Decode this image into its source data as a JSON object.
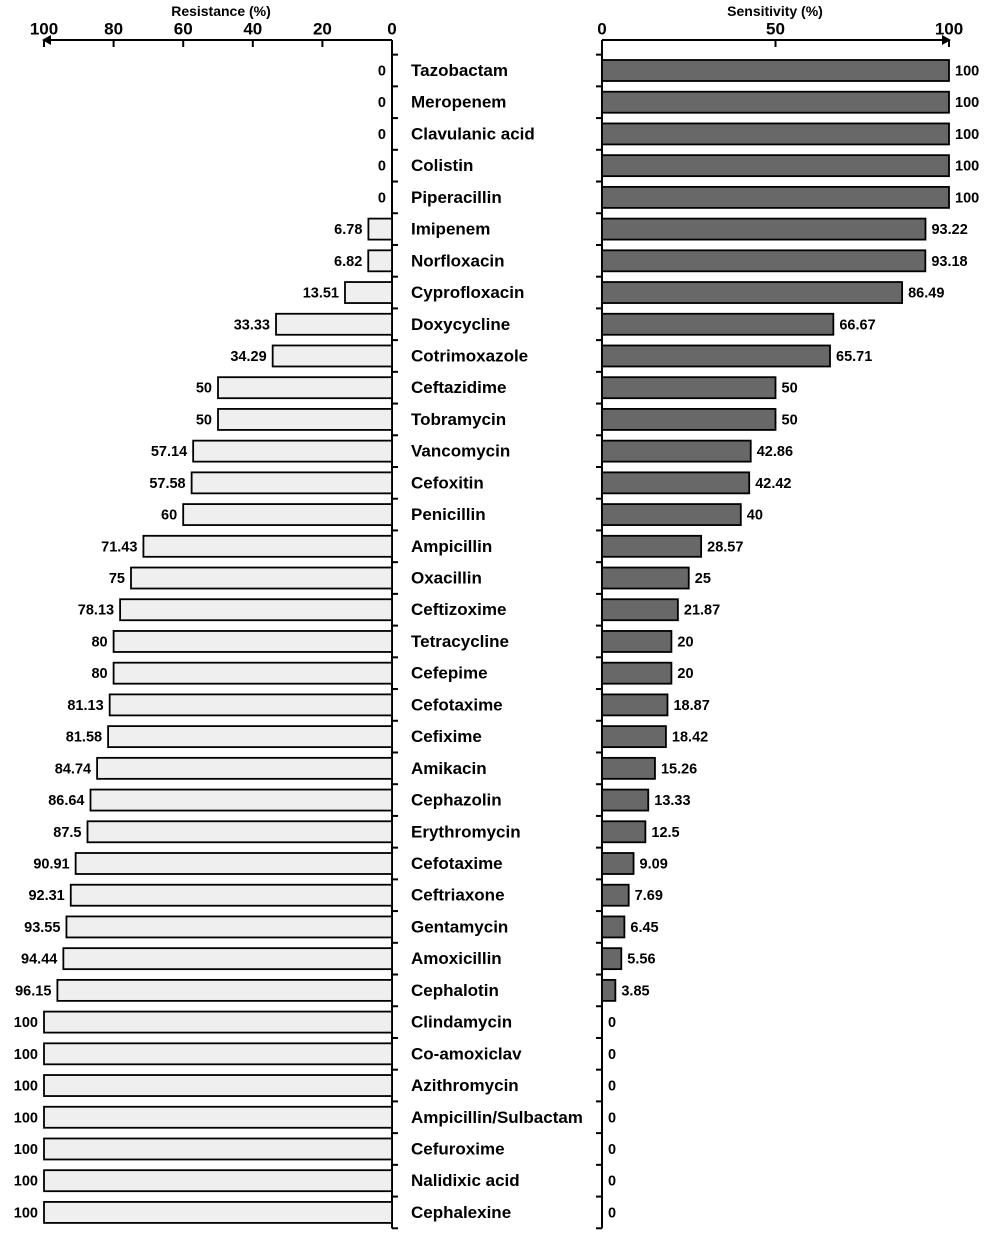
{
  "chart_data": {
    "type": "bar",
    "categories": [
      "Tazobactam",
      "Meropenem",
      "Clavulanic acid",
      "Colistin",
      "Piperacillin",
      "Imipenem",
      "Norfloxacin",
      "Cyprofloxacin",
      "Doxycycline",
      "Cotrimoxazole",
      "Ceftazidime",
      "Tobramycin",
      "Vancomycin",
      "Cefoxitin",
      "Penicillin",
      "Ampicillin",
      "Oxacillin",
      "Ceftizoxime",
      "Tetracycline",
      "Cefepime",
      "Cefotaxime",
      "Cefixime",
      "Amikacin",
      "Cephazolin",
      "Erythromycin",
      "Cefotaxime",
      "Ceftriaxone",
      "Gentamycin",
      "Amoxicillin",
      "Cephalotin",
      "Clindamycin",
      "Co-amoxiclav",
      "Azithromycin",
      "Ampicillin/Sulbactam",
      "Cefuroxime",
      "Nalidixic acid",
      "Cephalexine"
    ],
    "series": [
      {
        "name": "Resistance (%)",
        "color": "#efefef",
        "values": [
          0,
          0,
          0,
          0,
          0,
          6.78,
          6.82,
          13.51,
          33.33,
          34.29,
          50,
          50,
          57.14,
          57.58,
          60,
          71.43,
          75,
          78.13,
          80,
          80,
          81.13,
          81.58,
          84.74,
          86.64,
          87.5,
          90.91,
          92.31,
          93.55,
          94.44,
          96.15,
          100,
          100,
          100,
          100,
          100,
          100,
          100
        ],
        "labels": [
          "0",
          "0",
          "0",
          "0",
          "0",
          "6.78",
          "6.82",
          "13.51",
          "33.33",
          "34.29",
          "50",
          "50",
          "57.14",
          "57.58",
          "60",
          "71.43",
          "75",
          "78.13",
          "80",
          "80",
          "81.13",
          "81.58",
          "84.74",
          "86.64",
          "87.5",
          "90.91",
          "92.31",
          "93.55",
          "94.44",
          "96.15",
          "100",
          "100",
          "100",
          "100",
          "100",
          "100",
          "100"
        ]
      },
      {
        "name": "Sensitivity (%)",
        "color": "#686868",
        "values": [
          100,
          100,
          100,
          100,
          100,
          93.22,
          93.18,
          86.49,
          66.67,
          65.71,
          50,
          50,
          42.86,
          42.42,
          40,
          28.57,
          25,
          21.87,
          20,
          20,
          18.87,
          18.42,
          15.26,
          13.33,
          12.5,
          9.09,
          7.69,
          6.45,
          5.56,
          3.85,
          0,
          0,
          0,
          0,
          0,
          0,
          0
        ],
        "labels": [
          "100",
          "100",
          "100",
          "100",
          "100",
          "93.22",
          "93.18",
          "86.49",
          "66.67",
          "65.71",
          "50",
          "50",
          "42.86",
          "42.42",
          "40",
          "28.57",
          "25",
          "21.87",
          "20",
          "20",
          "18.87",
          "18.42",
          "15.26",
          "13.33",
          "12.5",
          "9.09",
          "7.69",
          "6.45",
          "5.56",
          "3.85",
          "0",
          "0",
          "0",
          "0",
          "0",
          "0",
          "0"
        ]
      }
    ],
    "resistance_axis": {
      "title": "Resistance (%)",
      "range": [
        0,
        100
      ],
      "ticks": [
        "100",
        "80",
        "60",
        "40",
        "20",
        "0"
      ],
      "direction": "right-to-left"
    },
    "sensitivity_axis": {
      "title": "Sensitivity (%)",
      "range": [
        0,
        100
      ],
      "ticks": [
        "0",
        "50",
        "100"
      ],
      "direction": "left-to-right"
    },
    "grid": false,
    "legend": "none"
  }
}
